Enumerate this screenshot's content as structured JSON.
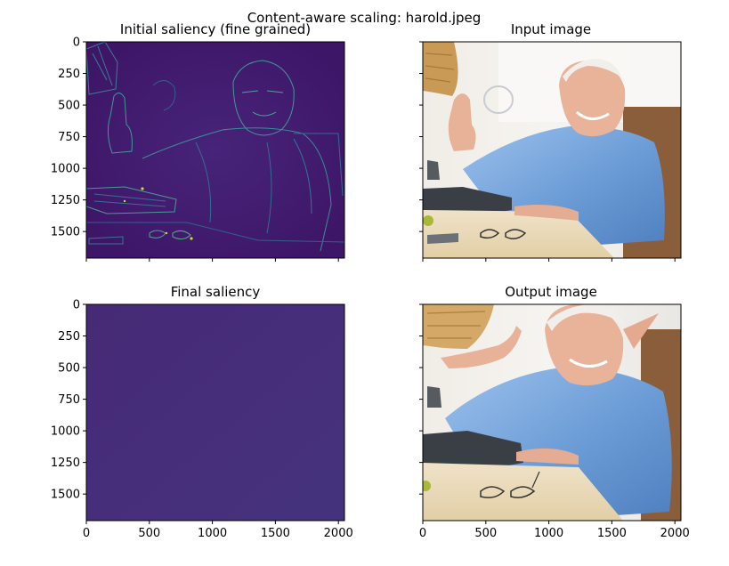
{
  "figure": {
    "suptitle": "Content-aware scaling: harold.jpeg"
  },
  "chart_data": [
    {
      "type": "heatmap",
      "title": "Initial saliency (fine grained)",
      "colormap": "viridis",
      "xlim": [
        0,
        2048
      ],
      "ylim": [
        1710,
        0
      ],
      "x_ticks": [
        0,
        500,
        1000,
        1500,
        2000
      ],
      "y_ticks": [
        0,
        250,
        500,
        750,
        1000,
        1250,
        1500
      ],
      "x_tick_labels_visible": false,
      "y_tick_labels_visible": true,
      "y_tick_labels": [
        "0",
        "250",
        "500",
        "750",
        "1000",
        "1250",
        "1500"
      ],
      "base_color": "#3d1a6b",
      "edge_color": "#3fa5a3",
      "hot_color": "#c8e020"
    },
    {
      "type": "image",
      "title": "Input image",
      "xlim": [
        0,
        2048
      ],
      "ylim": [
        1710,
        0
      ],
      "x_ticks": [
        0,
        500,
        1000,
        1500,
        2000
      ],
      "y_ticks": [
        0,
        250,
        500,
        750,
        1000,
        1250,
        1500
      ],
      "x_tick_labels_visible": false,
      "y_tick_labels_visible": false
    },
    {
      "type": "heatmap",
      "title": "Final saliency",
      "colormap": "viridis",
      "xlim": [
        0,
        2048
      ],
      "ylim": [
        1710,
        0
      ],
      "x_ticks": [
        0,
        500,
        1000,
        1500,
        2000
      ],
      "y_ticks": [
        0,
        250,
        500,
        750,
        1000,
        1250,
        1500
      ],
      "x_tick_labels_visible": true,
      "y_tick_labels_visible": true,
      "x_tick_labels": [
        "0",
        "500",
        "1000",
        "1500",
        "2000"
      ],
      "y_tick_labels": [
        "0",
        "250",
        "500",
        "750",
        "1000",
        "1250",
        "1500"
      ],
      "base_color": "#482e79"
    },
    {
      "type": "image",
      "title": "Output image",
      "xlim": [
        0,
        2048
      ],
      "ylim": [
        1710,
        0
      ],
      "x_ticks": [
        0,
        500,
        1000,
        1500,
        2000
      ],
      "y_ticks": [
        0,
        250,
        500,
        750,
        1000,
        1250,
        1500
      ],
      "x_tick_labels_visible": true,
      "y_tick_labels_visible": false,
      "x_tick_labels": [
        "0",
        "500",
        "1000",
        "1500",
        "2000"
      ]
    }
  ]
}
